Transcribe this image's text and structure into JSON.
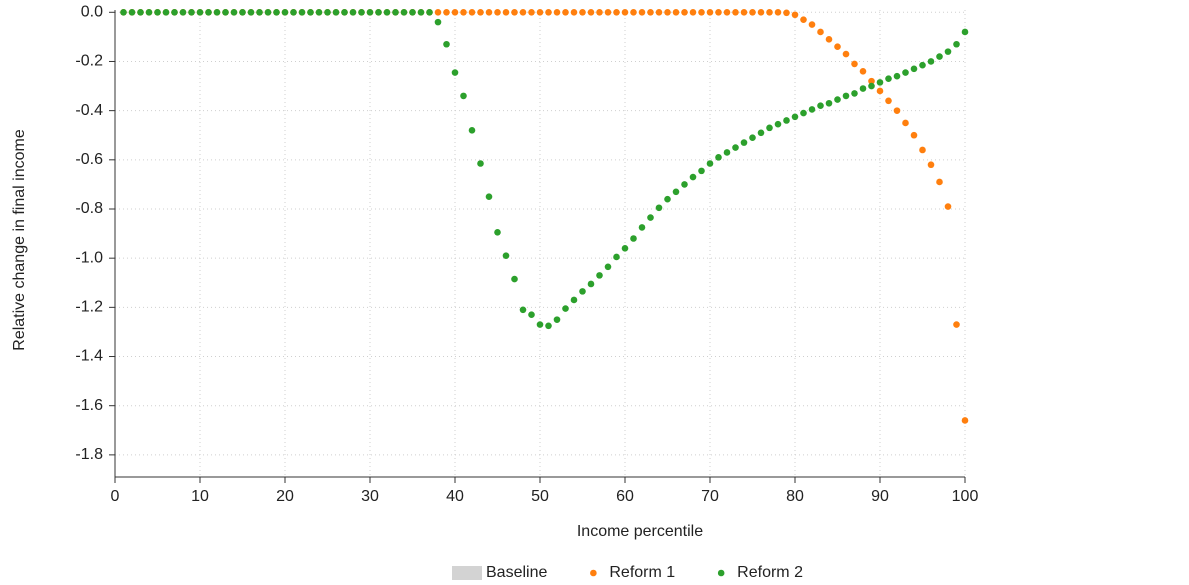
{
  "chart_data": {
    "type": "scatter",
    "xlabel": "Income percentile",
    "ylabel": "Relative change in final income",
    "xlim": [
      0,
      100
    ],
    "xticks": [
      0,
      10,
      20,
      30,
      40,
      50,
      60,
      70,
      80,
      90,
      100
    ],
    "ylim": [
      -1.89,
      0.05
    ],
    "yticks": [
      {
        "value": 0,
        "label": "0.0"
      },
      -0.2,
      -0.4,
      -0.6,
      -0.8,
      {
        "value": -1,
        "label": "-1.0"
      },
      -1.2,
      -1.4,
      -1.6,
      -1.8
    ],
    "grid": true,
    "legend": "bottom",
    "x": [
      1,
      2,
      3,
      4,
      5,
      6,
      7,
      8,
      9,
      10,
      11,
      12,
      13,
      14,
      15,
      16,
      17,
      18,
      19,
      20,
      21,
      22,
      23,
      24,
      25,
      26,
      27,
      28,
      29,
      30,
      31,
      32,
      33,
      34,
      35,
      36,
      37,
      38,
      39,
      40,
      41,
      42,
      43,
      44,
      45,
      46,
      47,
      48,
      49,
      50,
      51,
      52,
      53,
      54,
      55,
      56,
      57,
      58,
      59,
      60,
      61,
      62,
      63,
      64,
      65,
      66,
      67,
      68,
      69,
      70,
      71,
      72,
      73,
      74,
      75,
      76,
      77,
      78,
      79,
      80,
      81,
      82,
      83,
      84,
      85,
      86,
      87,
      88,
      89,
      90,
      91,
      92,
      93,
      94,
      95,
      96,
      97,
      98,
      99,
      100
    ],
    "series": [
      {
        "name": "Baseline",
        "type": "bar",
        "color": "#d3d3d3",
        "values": [
          0,
          0,
          0,
          0,
          0,
          0,
          0,
          0,
          0,
          0,
          0,
          0,
          0,
          0,
          0,
          0,
          0,
          0,
          0,
          0,
          0,
          0,
          0,
          0,
          0,
          0,
          0,
          0,
          0,
          0,
          0,
          0,
          0,
          0,
          0,
          0,
          0,
          0,
          0,
          0,
          0,
          0,
          0,
          0,
          0,
          0,
          0,
          0,
          0,
          0,
          0,
          0,
          0,
          0,
          0,
          0,
          0,
          0,
          0,
          0,
          0,
          0,
          0,
          0,
          0,
          0,
          0,
          0,
          0,
          0,
          0,
          0,
          0,
          0,
          0,
          0,
          0,
          0,
          0,
          0,
          0,
          0,
          0,
          0,
          0,
          0,
          0,
          0,
          0,
          0,
          0,
          0,
          0,
          0,
          0,
          0,
          0,
          0,
          0,
          0
        ]
      },
      {
        "name": "Reform 1",
        "type": "scatter",
        "color": "#ff7f0e",
        "values": [
          0,
          0,
          0,
          0,
          0,
          0,
          0,
          0,
          0,
          0,
          0,
          0,
          0,
          0,
          0,
          0,
          0,
          0,
          0,
          0,
          0,
          0,
          0,
          0,
          0,
          0,
          0,
          0,
          0,
          0,
          0,
          0,
          0,
          0,
          0,
          0,
          0,
          0,
          0,
          0,
          0,
          0,
          0,
          0,
          0,
          0,
          0,
          0,
          0,
          0,
          0,
          0,
          0,
          0,
          0,
          0,
          0,
          0,
          0,
          0,
          0,
          0,
          0,
          0,
          0,
          0,
          0,
          0,
          0,
          0,
          0,
          0,
          0,
          0,
          0,
          0,
          0,
          0,
          -0.002,
          -0.01,
          -0.03,
          -0.05,
          -0.08,
          -0.11,
          -0.14,
          -0.17,
          -0.21,
          -0.24,
          -0.28,
          -0.32,
          -0.36,
          -0.4,
          -0.45,
          -0.5,
          -0.56,
          -0.62,
          -0.69,
          -0.79,
          -1.27,
          -1.66
        ]
      },
      {
        "name": "Reform 2",
        "type": "scatter",
        "color": "#2ca02c",
        "values": [
          0,
          0,
          0,
          0,
          0,
          0,
          0,
          0,
          0,
          0,
          0,
          0,
          0,
          0,
          0,
          0,
          0,
          0,
          0,
          0,
          0,
          0,
          0,
          0,
          0,
          0,
          0,
          0,
          0,
          0,
          0,
          0,
          0,
          0,
          0,
          0,
          0,
          -0.04,
          -0.13,
          -0.245,
          -0.34,
          -0.48,
          -0.615,
          -0.75,
          -0.895,
          -0.99,
          -1.085,
          -1.21,
          -1.23,
          -1.27,
          -1.275,
          -1.25,
          -1.205,
          -1.17,
          -1.135,
          -1.105,
          -1.07,
          -1.035,
          -0.995,
          -0.96,
          -0.92,
          -0.875,
          -0.835,
          -0.795,
          -0.76,
          -0.73,
          -0.7,
          -0.67,
          -0.645,
          -0.615,
          -0.59,
          -0.57,
          -0.55,
          -0.53,
          -0.51,
          -0.49,
          -0.47,
          -0.455,
          -0.44,
          -0.425,
          -0.41,
          -0.395,
          -0.38,
          -0.37,
          -0.355,
          -0.34,
          -0.33,
          -0.31,
          -0.3,
          -0.285,
          -0.27,
          -0.26,
          -0.245,
          -0.23,
          -0.215,
          -0.2,
          -0.18,
          -0.16,
          -0.13,
          -0.08
        ]
      }
    ]
  }
}
